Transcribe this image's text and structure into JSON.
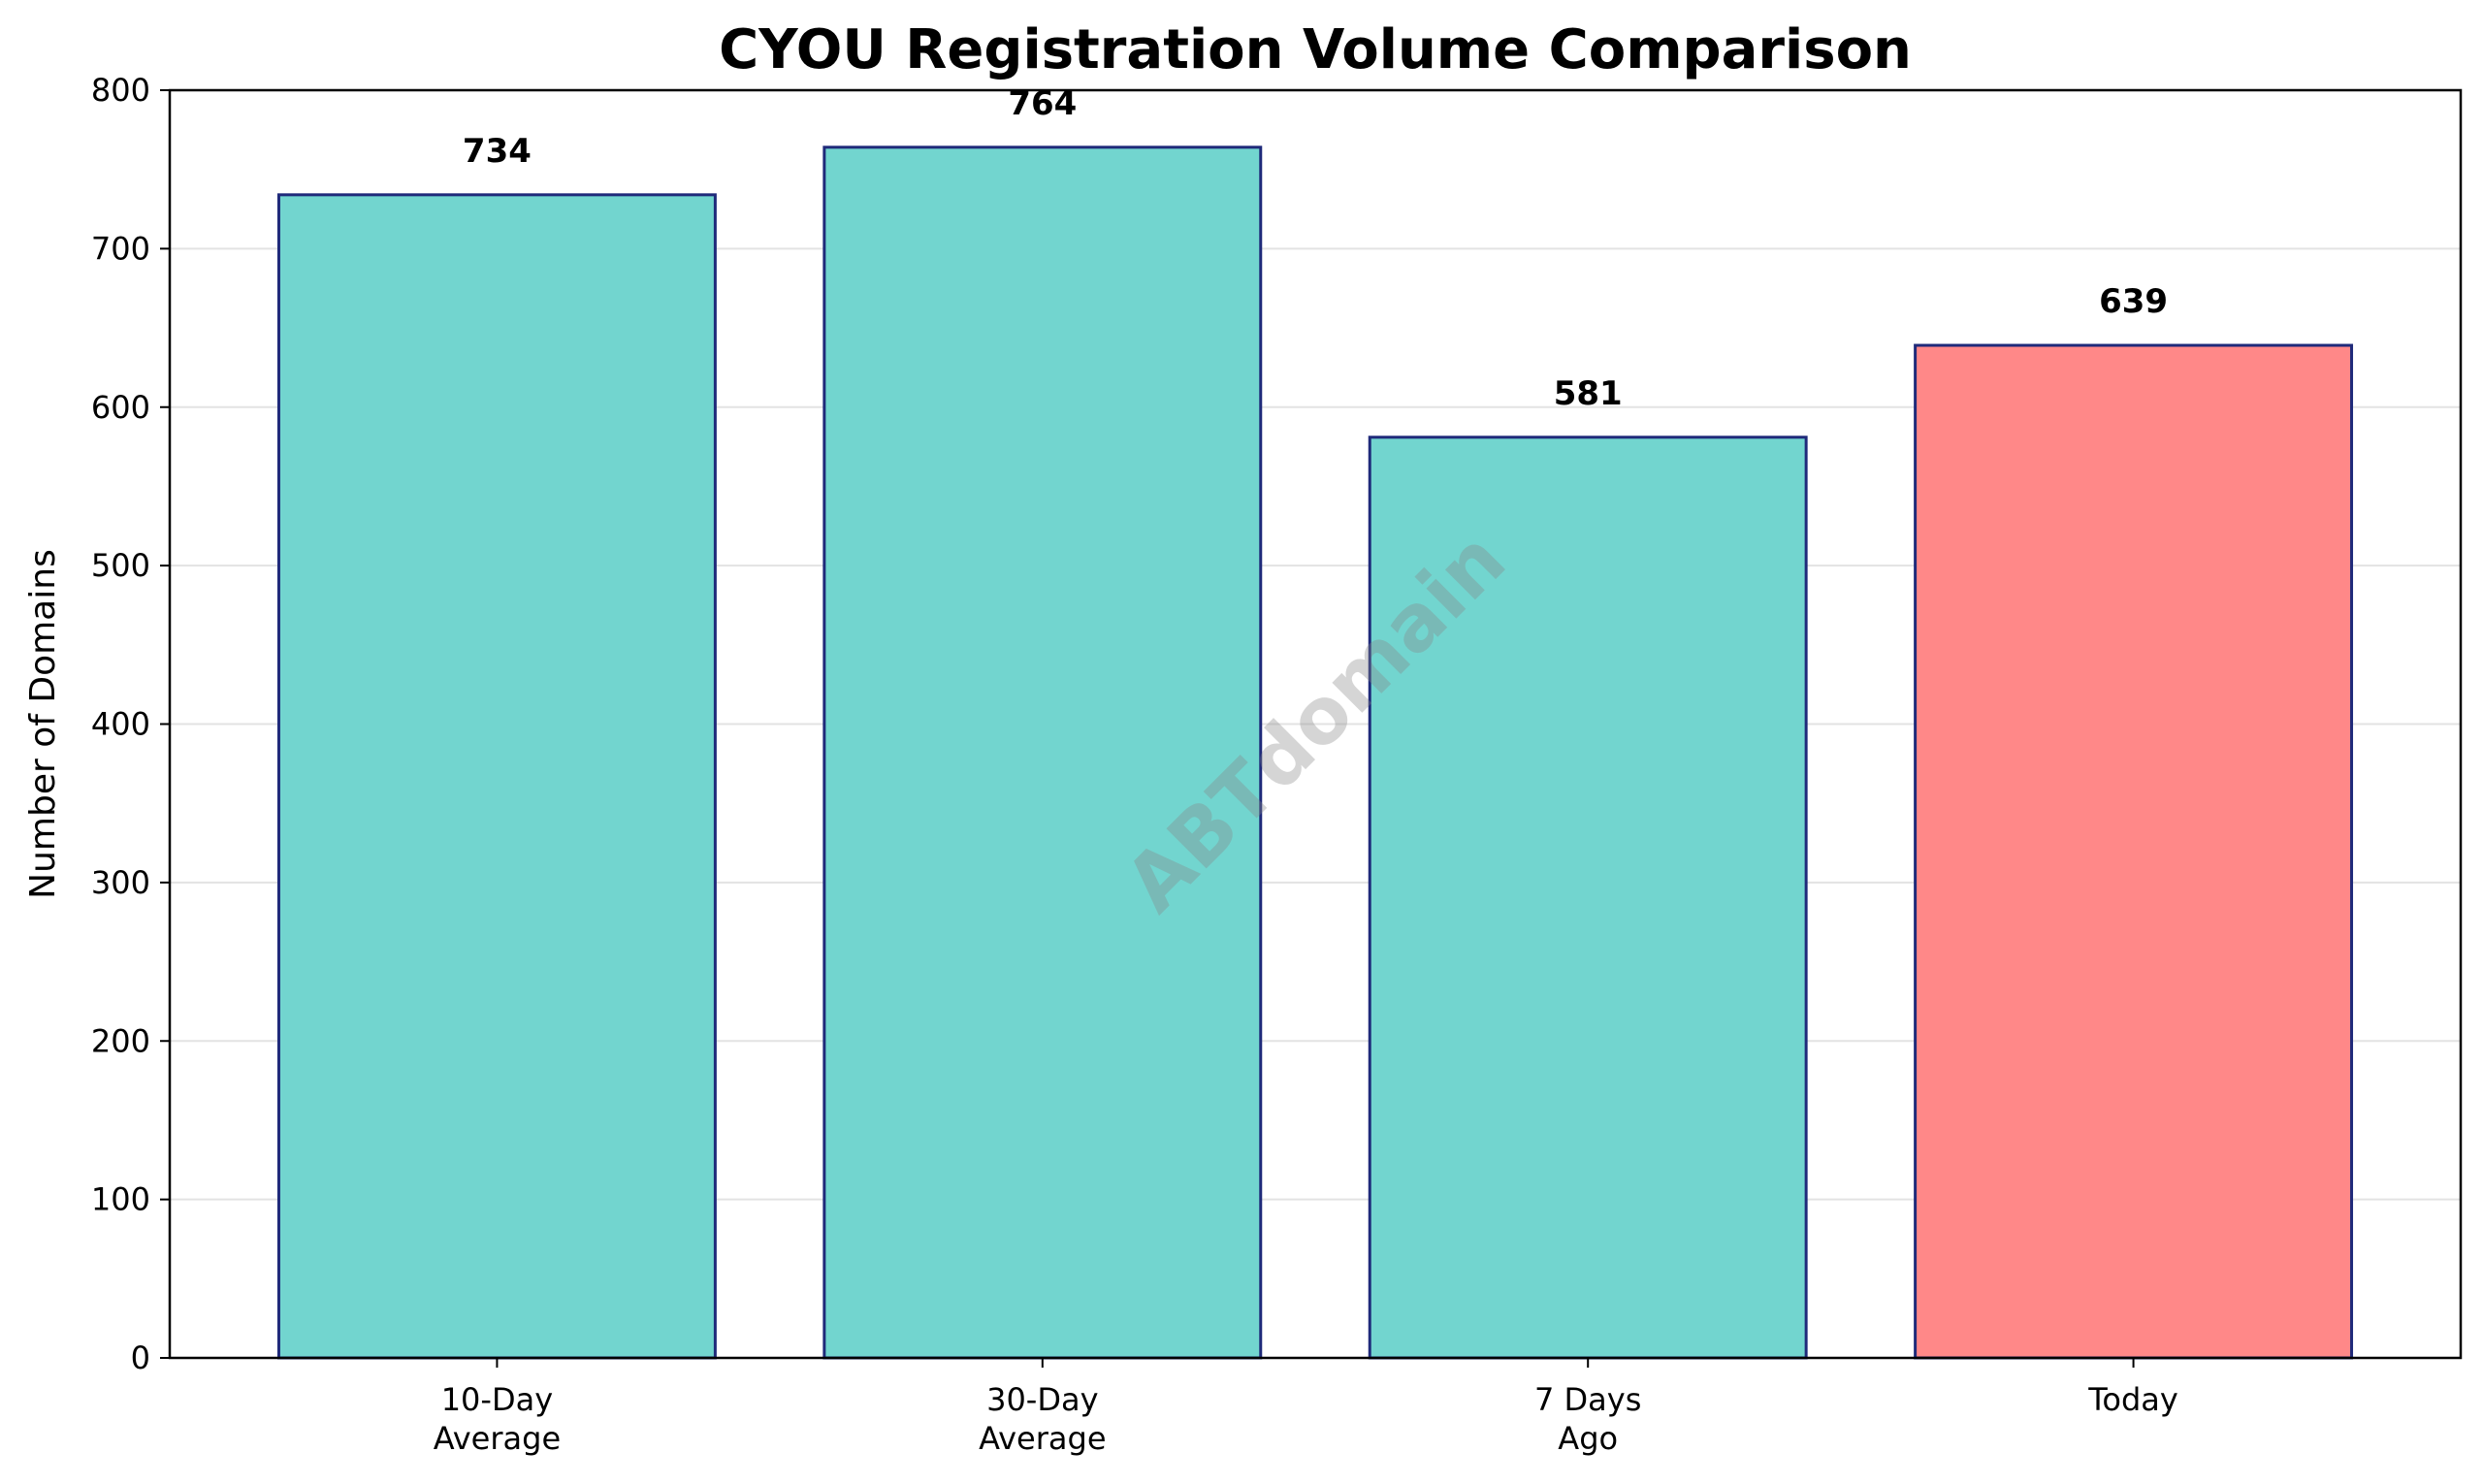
{
  "chart_data": {
    "type": "bar",
    "title": "CYOU Registration Volume Comparison",
    "xlabel": "",
    "ylabel": "Number of Domains",
    "categories": [
      [
        "10-Day",
        "Average"
      ],
      [
        "30-Day",
        "Average"
      ],
      [
        "7 Days",
        "Ago"
      ],
      [
        "Today"
      ]
    ],
    "values": [
      734,
      764,
      581,
      639
    ],
    "value_labels": [
      "734",
      "764",
      "581",
      "639"
    ],
    "bar_colors": [
      "#72d5cf",
      "#72d5cf",
      "#72d5cf",
      "#ff8888"
    ],
    "bar_edge_color": "#1f2a7a",
    "ylim": [
      0,
      800
    ],
    "yticks": [
      0,
      100,
      200,
      300,
      400,
      500,
      600,
      700,
      800
    ],
    "grid": "horizontal",
    "legend": "none"
  },
  "watermark": "ABTdomain"
}
